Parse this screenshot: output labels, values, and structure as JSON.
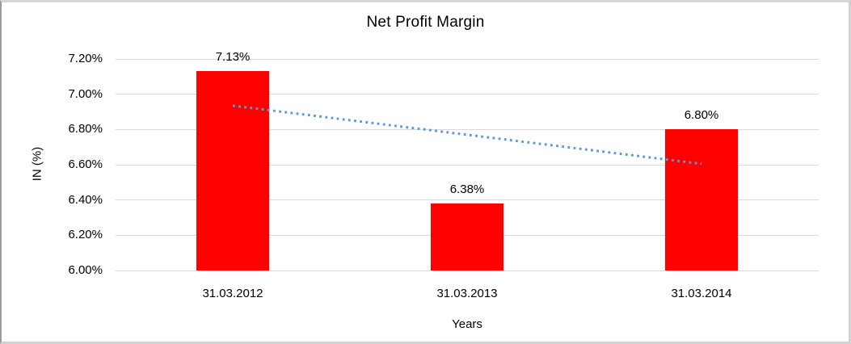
{
  "chart_data": {
    "type": "bar",
    "title": "Net Profit Margin",
    "xlabel": "Years",
    "ylabel": "IN (%)",
    "categories": [
      "31.03.2012",
      "31.03.2013",
      "31.03.2014"
    ],
    "series": [
      {
        "name": "Net Profit Margin",
        "values": [
          7.13,
          6.38,
          6.8
        ]
      }
    ],
    "data_labels": [
      "7.13%",
      "6.38%",
      "6.80%"
    ],
    "y_ticks": [
      {
        "value": 7.2,
        "label": "7.20%"
      },
      {
        "value": 7.0,
        "label": "7.00%"
      },
      {
        "value": 6.8,
        "label": "6.80%"
      },
      {
        "value": 6.6,
        "label": "6.60%"
      },
      {
        "value": 6.4,
        "label": "6.40%"
      },
      {
        "value": 6.2,
        "label": "6.20%"
      },
      {
        "value": 6.0,
        "label": "6.00%"
      }
    ],
    "ylim": [
      6.0,
      7.2
    ],
    "grid": true,
    "legend": "none",
    "colors": {
      "bar": "#FF0000",
      "gridline": "#D9D9D9",
      "text": "#000000",
      "trendline": "#5B9BD5"
    },
    "trendline": {
      "type": "linear",
      "style": "dotted",
      "start": {
        "category_index": 0,
        "value": 6.935
      },
      "end": {
        "category_index": 2,
        "value": 6.605
      }
    }
  }
}
